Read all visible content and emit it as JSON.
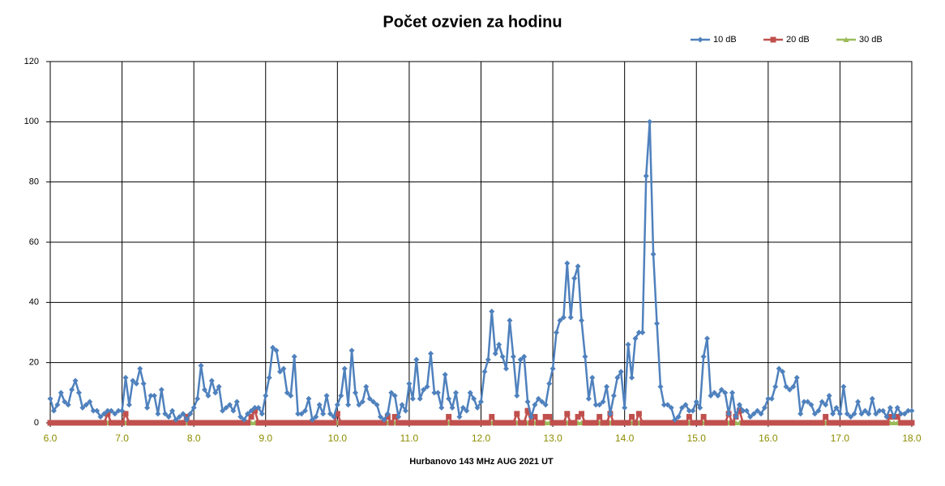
{
  "chart_data": {
    "type": "line",
    "title": "Počet ozvien za hodinu",
    "x_label": "Hurbanovo 143 MHz AUG   2021  UT",
    "xlim": [
      6,
      18
    ],
    "ylim": [
      0,
      120
    ],
    "xticks": [
      {
        "value": 6,
        "label": "6.0"
      },
      {
        "value": 7,
        "label": "7.0"
      },
      {
        "value": 8,
        "label": "8.0"
      },
      {
        "value": 9,
        "label": "9.0"
      },
      {
        "value": 10,
        "label": "10.0"
      },
      {
        "value": 11,
        "label": "11.0"
      },
      {
        "value": 12,
        "label": "12.0"
      },
      {
        "value": 13,
        "label": "13.0"
      },
      {
        "value": 14,
        "label": "14.0"
      },
      {
        "value": 15,
        "label": "15.0"
      },
      {
        "value": 16,
        "label": "16.0"
      },
      {
        "value": 17,
        "label": "17.0"
      },
      {
        "value": 18,
        "label": "18.0"
      }
    ],
    "yticks": [
      0,
      20,
      40,
      60,
      80,
      100,
      120
    ],
    "grid": true,
    "legend": "top-right",
    "x": [
      6,
      6.05,
      6.1,
      6.15,
      6.2,
      6.25,
      6.3,
      6.35,
      6.4,
      6.45,
      6.5,
      6.55,
      6.6,
      6.65,
      6.7,
      6.75,
      6.8,
      6.85,
      6.9,
      6.95,
      7,
      7.05,
      7.1,
      7.15,
      7.2,
      7.25,
      7.3,
      7.35,
      7.4,
      7.45,
      7.5,
      7.55,
      7.6,
      7.65,
      7.7,
      7.75,
      7.8,
      7.85,
      7.9,
      7.95,
      8,
      8.05,
      8.1,
      8.15,
      8.2,
      8.25,
      8.3,
      8.35,
      8.4,
      8.45,
      8.5,
      8.55,
      8.6,
      8.65,
      8.7,
      8.75,
      8.8,
      8.85,
      8.9,
      8.95,
      9,
      9.05,
      9.1,
      9.15,
      9.2,
      9.25,
      9.3,
      9.35,
      9.4,
      9.45,
      9.5,
      9.55,
      9.6,
      9.65,
      9.7,
      9.75,
      9.8,
      9.85,
      9.9,
      9.95,
      10,
      10.05,
      10.1,
      10.15,
      10.2,
      10.25,
      10.3,
      10.35,
      10.4,
      10.45,
      10.5,
      10.55,
      10.6,
      10.65,
      10.7,
      10.75,
      10.8,
      10.85,
      10.9,
      10.95,
      11,
      11.05,
      11.1,
      11.15,
      11.2,
      11.25,
      11.3,
      11.35,
      11.4,
      11.45,
      11.5,
      11.55,
      11.6,
      11.65,
      11.7,
      11.75,
      11.8,
      11.85,
      11.9,
      11.95,
      12,
      12.05,
      12.1,
      12.15,
      12.2,
      12.25,
      12.3,
      12.35,
      12.4,
      12.45,
      12.5,
      12.55,
      12.6,
      12.65,
      12.7,
      12.75,
      12.8,
      12.85,
      12.9,
      12.95,
      13,
      13.05,
      13.1,
      13.15,
      13.2,
      13.25,
      13.3,
      13.35,
      13.4,
      13.45,
      13.5,
      13.55,
      13.6,
      13.65,
      13.7,
      13.75,
      13.8,
      13.85,
      13.9,
      13.95,
      14,
      14.05,
      14.1,
      14.15,
      14.2,
      14.25,
      14.3,
      14.35,
      14.4,
      14.45,
      14.5,
      14.55,
      14.6,
      14.65,
      14.7,
      14.75,
      14.8,
      14.85,
      14.9,
      14.95,
      15,
      15.05,
      15.1,
      15.15,
      15.2,
      15.25,
      15.3,
      15.35,
      15.4,
      15.45,
      15.5,
      15.55,
      15.6,
      15.65,
      15.7,
      15.75,
      15.8,
      15.85,
      15.9,
      15.95,
      16,
      16.05,
      16.1,
      16.15,
      16.2,
      16.25,
      16.3,
      16.35,
      16.4,
      16.45,
      16.5,
      16.55,
      16.6,
      16.65,
      16.7,
      16.75,
      16.8,
      16.85,
      16.9,
      16.95,
      17,
      17.05,
      17.1,
      17.15,
      17.2,
      17.25,
      17.3,
      17.35,
      17.4,
      17.45,
      17.5,
      17.55,
      17.6,
      17.65,
      17.7,
      17.75,
      17.8,
      17.85,
      17.9,
      17.95,
      18
    ],
    "series": [
      {
        "name": "10 dB",
        "color": "#4f81bd",
        "marker": "diamond",
        "values": [
          8,
          4,
          6,
          10,
          7,
          6,
          11,
          14,
          10,
          5,
          6,
          7,
          4,
          4,
          2,
          3,
          4,
          4,
          3,
          4,
          4,
          15,
          6,
          14,
          13,
          18,
          13,
          5,
          9,
          9,
          3,
          11,
          3,
          2,
          4,
          1,
          2,
          3,
          1,
          3,
          5,
          8,
          19,
          11,
          9,
          14,
          10,
          12,
          4,
          5,
          6,
          4,
          7,
          2,
          1,
          3,
          4,
          5,
          5,
          3,
          9,
          15,
          25,
          24,
          17,
          18,
          10,
          9,
          22,
          3,
          3,
          4,
          8,
          1,
          2,
          6,
          3,
          9,
          3,
          2,
          6,
          9,
          18,
          6,
          24,
          10,
          6,
          7,
          12,
          8,
          7,
          6,
          2,
          1,
          3,
          10,
          9,
          2,
          6,
          4,
          13,
          8,
          21,
          8,
          11,
          12,
          23,
          10,
          10,
          5,
          16,
          8,
          5,
          10,
          2,
          5,
          4,
          10,
          8,
          5,
          7,
          17,
          21,
          37,
          23,
          26,
          22,
          18,
          34,
          22,
          9,
          21,
          22,
          7,
          2,
          6,
          8,
          7,
          6,
          13,
          18,
          30,
          34,
          35,
          53,
          35,
          48,
          52,
          34,
          22,
          8,
          15,
          6,
          6,
          7,
          12,
          3,
          9,
          15,
          17,
          5,
          26,
          15,
          28,
          30,
          30,
          82,
          100,
          56,
          33,
          12,
          6,
          6,
          5,
          1,
          2,
          5,
          6,
          4,
          4,
          7,
          5,
          22,
          28,
          9,
          10,
          9,
          11,
          10,
          3,
          10,
          2,
          6,
          4,
          4,
          2,
          3,
          4,
          3,
          5,
          8,
          8,
          12,
          18,
          17,
          12,
          11,
          12,
          15,
          3,
          7,
          7,
          6,
          3,
          4,
          7,
          6,
          9,
          3,
          5,
          3,
          12,
          3,
          2,
          3,
          7,
          3,
          4,
          3,
          8,
          3,
          4,
          4,
          2,
          5,
          2,
          5,
          3,
          3,
          4,
          4
        ]
      },
      {
        "name": "20 dB",
        "color": "#c0504d",
        "marker": "square",
        "values": [
          0,
          0,
          0,
          0,
          0,
          0,
          0,
          0,
          0,
          0,
          0,
          0,
          0,
          0,
          0,
          0,
          3,
          0,
          0,
          0,
          0,
          3,
          0,
          0,
          0,
          0,
          0,
          0,
          0,
          0,
          0,
          0,
          0,
          0,
          0,
          0,
          0,
          0,
          2,
          0,
          0,
          0,
          0,
          0,
          0,
          0,
          0,
          0,
          0,
          0,
          0,
          0,
          0,
          0,
          0,
          0,
          2,
          4,
          0,
          0,
          0,
          0,
          0,
          0,
          0,
          0,
          0,
          0,
          0,
          0,
          0,
          0,
          0,
          0,
          0,
          0,
          0,
          0,
          0,
          0,
          3,
          0,
          0,
          0,
          0,
          0,
          0,
          0,
          0,
          0,
          0,
          0,
          0,
          0,
          2,
          0,
          2,
          0,
          0,
          0,
          0,
          0,
          0,
          0,
          0,
          0,
          0,
          0,
          0,
          0,
          0,
          2,
          0,
          0,
          0,
          0,
          0,
          0,
          0,
          0,
          0,
          0,
          0,
          2,
          0,
          0,
          0,
          0,
          0,
          0,
          3,
          0,
          0,
          4,
          0,
          2,
          0,
          0,
          2,
          2,
          0,
          0,
          0,
          0,
          3,
          0,
          0,
          2,
          3,
          0,
          0,
          0,
          0,
          2,
          0,
          0,
          3,
          0,
          0,
          0,
          0,
          0,
          2,
          0,
          3,
          0,
          0,
          0,
          0,
          0,
          0,
          0,
          0,
          0,
          0,
          0,
          0,
          0,
          2,
          0,
          0,
          0,
          2,
          0,
          0,
          0,
          0,
          0,
          0,
          3,
          0,
          2,
          4,
          0,
          0,
          0,
          0,
          0,
          0,
          0,
          0,
          0,
          0,
          0,
          0,
          0,
          0,
          0,
          0,
          0,
          0,
          0,
          0,
          0,
          0,
          0,
          2,
          0,
          0,
          0,
          0,
          0,
          0,
          0,
          0,
          0,
          0,
          0,
          0,
          0,
          0,
          0,
          0,
          0,
          2,
          2,
          2,
          0,
          0,
          0,
          0
        ]
      },
      {
        "name": "30 dB",
        "color": "#9bbb59",
        "marker": "triangle",
        "values": [
          0,
          0,
          0,
          0,
          0,
          0,
          0,
          0,
          0,
          0,
          0,
          0,
          0,
          0,
          0,
          0,
          0,
          0,
          0,
          0,
          0,
          0,
          0,
          0,
          0,
          0,
          0,
          0,
          0,
          0,
          0,
          0,
          0,
          0,
          0,
          0,
          0,
          0,
          0,
          0,
          0,
          0,
          0,
          0,
          0,
          0,
          0,
          0,
          0,
          0,
          0,
          0,
          0,
          0,
          0,
          0,
          0,
          0,
          0,
          0,
          0,
          0,
          0,
          0,
          0,
          0,
          0,
          0,
          0,
          0,
          0,
          0,
          0,
          0,
          0,
          0,
          0,
          0,
          0,
          0,
          0,
          0,
          0,
          0,
          0,
          0,
          0,
          0,
          0,
          0,
          0,
          0,
          0,
          0,
          0,
          0,
          0,
          0,
          0,
          0,
          0,
          0,
          0,
          0,
          0,
          0,
          0,
          0,
          0,
          0,
          0,
          0,
          0,
          0,
          0,
          0,
          0,
          0,
          0,
          0,
          0,
          0,
          0,
          0,
          0,
          0,
          0,
          0,
          0,
          0,
          0,
          0,
          0,
          0,
          0,
          0,
          0,
          0,
          0,
          0,
          0,
          0,
          0,
          0,
          0,
          0,
          0,
          0,
          0,
          0,
          0,
          0,
          0,
          0,
          0,
          0,
          0,
          0,
          0,
          0,
          0,
          0,
          0,
          0,
          0,
          0,
          0,
          0,
          0,
          0,
          0,
          0,
          0,
          0,
          0,
          0,
          0,
          0,
          0,
          0,
          0,
          0,
          0,
          0,
          0,
          0,
          0,
          0,
          0,
          0,
          0,
          0,
          0,
          0,
          0,
          0,
          0,
          0,
          0,
          0,
          0,
          0,
          0,
          0,
          0,
          0,
          0,
          0,
          0,
          0,
          0,
          0,
          0,
          0,
          0,
          0,
          0,
          0,
          0,
          0,
          0,
          0,
          0,
          0,
          0,
          0,
          0,
          0,
          0,
          0,
          0,
          0,
          0,
          0,
          0,
          0,
          0,
          0,
          0,
          0,
          0
        ]
      }
    ]
  }
}
